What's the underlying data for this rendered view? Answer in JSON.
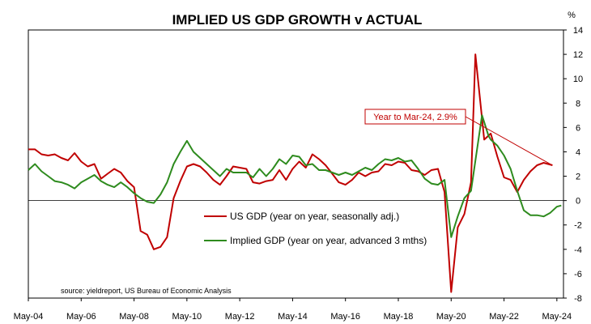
{
  "chart_data": {
    "type": "line",
    "title": "IMPLIED US GDP GROWTH v ACTUAL",
    "y_unit_label": "%",
    "ylim": [
      -8,
      14
    ],
    "y_ticks": [
      14,
      12,
      10,
      8,
      6,
      4,
      2,
      0,
      -2,
      -4,
      -6,
      -8
    ],
    "x_range": [
      "2004-05",
      "2024-08"
    ],
    "x_tick_labels": [
      "May-04",
      "May-06",
      "May-08",
      "May-10",
      "May-12",
      "May-14",
      "May-16",
      "May-18",
      "May-20",
      "May-22",
      "May-24"
    ],
    "grid": false,
    "legend_position": "lower-middle",
    "source": "source: yieldreport, US Bureau of Economic Analysis",
    "annotation": {
      "text": "Year to Mar-24, 2.9%",
      "target": {
        "x": "2024-03",
        "y": 2.9
      },
      "color": "#c00000"
    },
    "series": [
      {
        "name": "US GDP (year on year, seasonally adj.)",
        "color": "#c00000",
        "points": [
          [
            "2004-05",
            4.2
          ],
          [
            "2004-08",
            4.2
          ],
          [
            "2004-11",
            3.8
          ],
          [
            "2005-02",
            3.7
          ],
          [
            "2005-05",
            3.8
          ],
          [
            "2005-08",
            3.5
          ],
          [
            "2005-11",
            3.3
          ],
          [
            "2006-02",
            3.9
          ],
          [
            "2006-05",
            3.2
          ],
          [
            "2006-08",
            2.8
          ],
          [
            "2006-11",
            3.0
          ],
          [
            "2007-02",
            1.8
          ],
          [
            "2007-05",
            2.2
          ],
          [
            "2007-08",
            2.6
          ],
          [
            "2007-11",
            2.3
          ],
          [
            "2008-02",
            1.6
          ],
          [
            "2008-05",
            1.1
          ],
          [
            "2008-08",
            -2.5
          ],
          [
            "2008-11",
            -2.8
          ],
          [
            "2009-02",
            -4.0
          ],
          [
            "2009-05",
            -3.8
          ],
          [
            "2009-08",
            -3.0
          ],
          [
            "2009-11",
            0.2
          ],
          [
            "2010-02",
            1.6
          ],
          [
            "2010-05",
            2.8
          ],
          [
            "2010-08",
            3.0
          ],
          [
            "2010-11",
            2.8
          ],
          [
            "2011-02",
            2.3
          ],
          [
            "2011-05",
            1.7
          ],
          [
            "2011-08",
            1.3
          ],
          [
            "2011-11",
            2.0
          ],
          [
            "2012-02",
            2.8
          ],
          [
            "2012-05",
            2.7
          ],
          [
            "2012-08",
            2.6
          ],
          [
            "2012-11",
            1.5
          ],
          [
            "2013-02",
            1.4
          ],
          [
            "2013-05",
            1.6
          ],
          [
            "2013-08",
            1.7
          ],
          [
            "2013-11",
            2.5
          ],
          [
            "2014-02",
            1.7
          ],
          [
            "2014-05",
            2.6
          ],
          [
            "2014-08",
            3.2
          ],
          [
            "2014-11",
            2.7
          ],
          [
            "2015-02",
            3.8
          ],
          [
            "2015-05",
            3.4
          ],
          [
            "2015-08",
            2.9
          ],
          [
            "2015-11",
            2.2
          ],
          [
            "2016-02",
            1.5
          ],
          [
            "2016-05",
            1.3
          ],
          [
            "2016-08",
            1.7
          ],
          [
            "2016-11",
            2.3
          ],
          [
            "2017-02",
            2.0
          ],
          [
            "2017-05",
            2.3
          ],
          [
            "2017-08",
            2.4
          ],
          [
            "2017-11",
            3.0
          ],
          [
            "2018-02",
            2.9
          ],
          [
            "2018-05",
            3.2
          ],
          [
            "2018-08",
            3.1
          ],
          [
            "2018-11",
            2.5
          ],
          [
            "2019-02",
            2.4
          ],
          [
            "2019-05",
            2.1
          ],
          [
            "2019-08",
            2.5
          ],
          [
            "2019-11",
            2.6
          ],
          [
            "2020-02",
            0.7
          ],
          [
            "2020-05",
            -7.5
          ],
          [
            "2020-08",
            -2.2
          ],
          [
            "2020-11",
            -1.1
          ],
          [
            "2021-02",
            1.5
          ],
          [
            "2021-04",
            12.0
          ],
          [
            "2021-08",
            5.0
          ],
          [
            "2021-11",
            5.5
          ],
          [
            "2022-02",
            3.6
          ],
          [
            "2022-05",
            1.9
          ],
          [
            "2022-08",
            1.7
          ],
          [
            "2022-11",
            0.7
          ],
          [
            "2023-02",
            1.7
          ],
          [
            "2023-05",
            2.4
          ],
          [
            "2023-08",
            2.9
          ],
          [
            "2023-11",
            3.1
          ],
          [
            "2024-03",
            2.9
          ]
        ]
      },
      {
        "name": "Implied GDP (year on year, advanced 3 mths)",
        "color": "#2e8b1e",
        "points": [
          [
            "2004-05",
            2.5
          ],
          [
            "2004-08",
            3.0
          ],
          [
            "2004-11",
            2.4
          ],
          [
            "2005-02",
            2.0
          ],
          [
            "2005-05",
            1.6
          ],
          [
            "2005-08",
            1.5
          ],
          [
            "2005-11",
            1.3
          ],
          [
            "2006-02",
            1.0
          ],
          [
            "2006-05",
            1.5
          ],
          [
            "2006-08",
            1.8
          ],
          [
            "2006-11",
            2.1
          ],
          [
            "2007-02",
            1.6
          ],
          [
            "2007-05",
            1.3
          ],
          [
            "2007-08",
            1.1
          ],
          [
            "2007-11",
            1.5
          ],
          [
            "2008-02",
            1.1
          ],
          [
            "2008-05",
            0.6
          ],
          [
            "2008-08",
            0.2
          ],
          [
            "2008-11",
            -0.1
          ],
          [
            "2009-02",
            -0.2
          ],
          [
            "2009-05",
            0.5
          ],
          [
            "2009-08",
            1.5
          ],
          [
            "2009-11",
            3.0
          ],
          [
            "2010-02",
            4.0
          ],
          [
            "2010-05",
            4.9
          ],
          [
            "2010-08",
            4.0
          ],
          [
            "2010-11",
            3.5
          ],
          [
            "2011-02",
            3.0
          ],
          [
            "2011-05",
            2.5
          ],
          [
            "2011-08",
            2.0
          ],
          [
            "2011-11",
            2.6
          ],
          [
            "2012-02",
            2.3
          ],
          [
            "2012-05",
            2.3
          ],
          [
            "2012-08",
            2.3
          ],
          [
            "2012-11",
            1.9
          ],
          [
            "2013-02",
            2.6
          ],
          [
            "2013-05",
            2.0
          ],
          [
            "2013-08",
            2.6
          ],
          [
            "2013-11",
            3.4
          ],
          [
            "2014-02",
            3.0
          ],
          [
            "2014-05",
            3.7
          ],
          [
            "2014-08",
            3.6
          ],
          [
            "2014-11",
            2.9
          ],
          [
            "2015-02",
            3.0
          ],
          [
            "2015-05",
            2.5
          ],
          [
            "2015-08",
            2.5
          ],
          [
            "2015-11",
            2.3
          ],
          [
            "2016-02",
            2.1
          ],
          [
            "2016-05",
            2.3
          ],
          [
            "2016-08",
            2.1
          ],
          [
            "2016-11",
            2.4
          ],
          [
            "2017-02",
            2.7
          ],
          [
            "2017-05",
            2.5
          ],
          [
            "2017-08",
            3.0
          ],
          [
            "2017-11",
            3.4
          ],
          [
            "2018-02",
            3.3
          ],
          [
            "2018-05",
            3.5
          ],
          [
            "2018-08",
            3.2
          ],
          [
            "2018-11",
            3.3
          ],
          [
            "2019-02",
            2.6
          ],
          [
            "2019-05",
            1.8
          ],
          [
            "2019-08",
            1.4
          ],
          [
            "2019-11",
            1.3
          ],
          [
            "2020-02",
            1.7
          ],
          [
            "2020-05",
            -3.0
          ],
          [
            "2020-08",
            -1.3
          ],
          [
            "2020-11",
            0.2
          ],
          [
            "2021-02",
            0.8
          ],
          [
            "2021-05",
            4.5
          ],
          [
            "2021-07",
            7.0
          ],
          [
            "2021-10",
            5.3
          ],
          [
            "2021-11",
            5.0
          ],
          [
            "2022-02",
            4.5
          ],
          [
            "2022-05",
            3.7
          ],
          [
            "2022-08",
            2.6
          ],
          [
            "2022-11",
            0.8
          ],
          [
            "2023-02",
            -0.8
          ],
          [
            "2023-05",
            -1.2
          ],
          [
            "2023-08",
            -1.2
          ],
          [
            "2023-11",
            -1.3
          ],
          [
            "2024-02",
            -1.0
          ],
          [
            "2024-05",
            -0.5
          ],
          [
            "2024-07",
            -0.4
          ]
        ]
      }
    ]
  }
}
